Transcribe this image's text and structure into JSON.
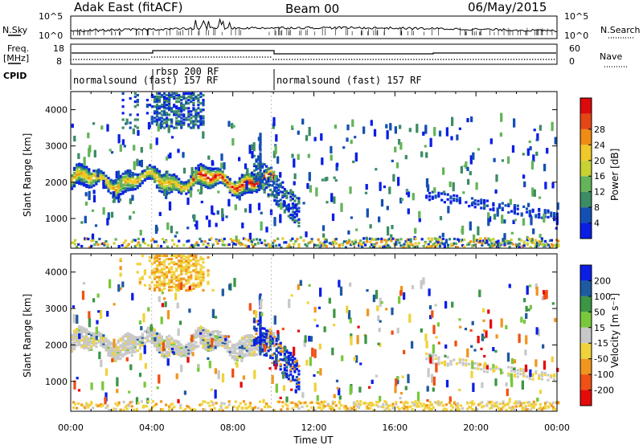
{
  "header": {
    "station": "Adak East (fitACF)",
    "beam": "Beam 00",
    "date": "06/May/2015"
  },
  "panels": {
    "noise": {
      "left_label": "N.Sky",
      "right_label": "N.Search",
      "left_ticks": [
        "10^5",
        "10^0"
      ],
      "right_ticks": [
        "10^5",
        "10^0"
      ]
    },
    "freq": {
      "left_label_1": "Freq.",
      "left_label_2": "[MHz]",
      "right_label": "Nave",
      "left_ticks": [
        "18",
        "8"
      ],
      "right_ticks": [
        "60",
        "0"
      ]
    },
    "cpid": {
      "label": "CPID",
      "segments": [
        {
          "name": "normalsound (fast) 157 RF",
          "start": 0.0,
          "end": 4.0
        },
        {
          "name": "rbsp 200 RF",
          "start": 4.0,
          "end": 9.9
        },
        {
          "name": "normalsound (fast) 157 RF",
          "start": 9.9,
          "end": 24.0
        }
      ]
    }
  },
  "axes": {
    "ylabel": "Slant Range [km]",
    "y_ticks": [
      "1000",
      "2000",
      "3000",
      "4000"
    ],
    "x_ticks": [
      "00:00",
      "04:00",
      "08:00",
      "12:00",
      "16:00",
      "20:00",
      "00:00"
    ],
    "xlabel": "Time UT"
  },
  "colorbars": {
    "power": {
      "label": "Power [dB]",
      "ticks": [
        "4",
        "8",
        "12",
        "16",
        "20",
        "24",
        "28"
      ],
      "colors": [
        "#0a1ee6",
        "#1450b4",
        "#3c8c64",
        "#64b45a",
        "#c8d232",
        "#f0c828",
        "#f08c14",
        "#e64614",
        "#dc0a0a"
      ]
    },
    "velocity": {
      "label": "Velocity [m s⁻¹]",
      "ticks": [
        "200",
        "100",
        "50",
        "15",
        "-15",
        "-50",
        "-100",
        "-200"
      ],
      "colors": [
        "#0a1ee6",
        "#1e5aa0",
        "#3c9646",
        "#78c83c",
        "#c8c8c8",
        "#f0d23c",
        "#f0961e",
        "#f05014",
        "#e60a0a"
      ]
    }
  },
  "chart_data": [
    {
      "type": "heatmap",
      "title": "Power",
      "xlabel": "Time UT",
      "ylabel": "Slant Range [km]",
      "xlim": [
        0,
        24
      ],
      "ylim": [
        180,
        4500
      ],
      "colorbar_range": [
        0,
        30
      ],
      "features": [
        {
          "feature": "main band",
          "time_start": 0,
          "time_end": 10,
          "range_center_km": 2050,
          "range_width_km": 450,
          "peak_power_db": 26
        },
        {
          "feature": "upper patch",
          "time_start": 2.4,
          "time_end": 6.8,
          "range_center_km": 3900,
          "range_width_km": 500,
          "peak_power_db": 12
        },
        {
          "feature": "descending echoes",
          "time_start": 9,
          "time_end": 11.2,
          "range_center_km": 1500,
          "range_width_km": 800,
          "peak_power_db": 10
        },
        {
          "feature": "late band",
          "time_start": 17.5,
          "time_end": 24,
          "range_center_km": 1100,
          "range_width_km": 200,
          "peak_power_db": 6
        }
      ]
    },
    {
      "type": "heatmap",
      "title": "Velocity",
      "xlabel": "Time UT",
      "ylabel": "Slant Range [km]",
      "xlim": [
        0,
        24
      ],
      "ylim": [
        180,
        4500
      ],
      "colorbar_range": [
        -200,
        200
      ],
      "features": [
        {
          "feature": "main band",
          "time_start": 0,
          "time_end": 10,
          "range_center_km": 2050,
          "velocity_ms": 0
        },
        {
          "feature": "upper patch",
          "time_start": 4,
          "time_end": 6.5,
          "range_center_km": 4000,
          "velocity_ms": -50
        },
        {
          "feature": "descending echoes",
          "time_start": 9.2,
          "time_end": 11.2,
          "range_center_km": 1500,
          "velocity_ms": 150
        }
      ]
    }
  ]
}
